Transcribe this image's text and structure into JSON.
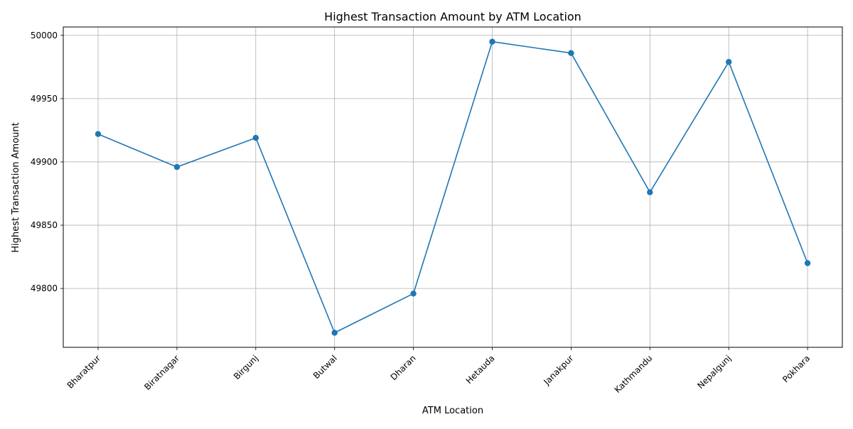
{
  "chart_data": {
    "type": "line",
    "title": "Highest Transaction Amount by ATM Location",
    "xlabel": "ATM Location",
    "ylabel": "Highest Transaction Amount",
    "categories": [
      "Bharatpur",
      "Biratnagar",
      "Birgunj",
      "Butwal",
      "Dharan",
      "Hetauda",
      "Janakpur",
      "Kathmandu",
      "Nepalgunj",
      "Pokhara"
    ],
    "series": [
      {
        "values": [
          49922,
          49896,
          49919,
          49765,
          49796,
          49995,
          49986,
          49876,
          49979,
          49820
        ],
        "color": "#1f77b4",
        "marker": "circle"
      }
    ],
    "ylim": [
      49753.5,
      50006.6
    ],
    "yticks": [
      49800,
      49850,
      49900,
      49950,
      50000
    ],
    "xtick_rotation": 45,
    "grid": true,
    "legend": "none"
  }
}
